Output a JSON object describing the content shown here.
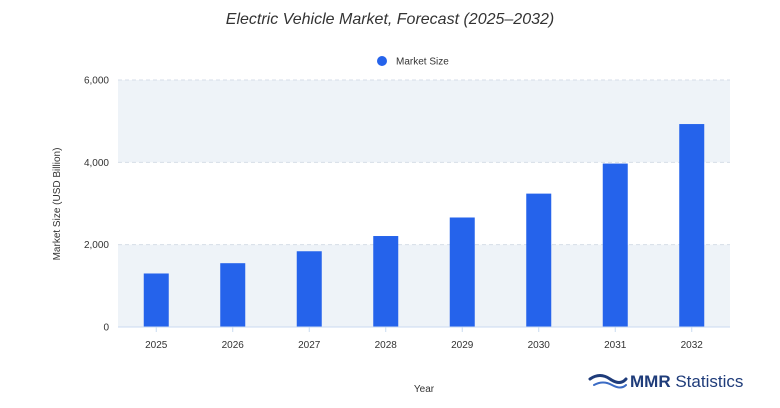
{
  "chart_data": {
    "type": "bar",
    "title": "Electric Vehicle Market, Forecast (2025–2032)",
    "xlabel": "Year",
    "ylabel": "Market Size (USD Billion)",
    "categories": [
      "2025",
      "2026",
      "2027",
      "2028",
      "2029",
      "2030",
      "2031",
      "2032"
    ],
    "series": [
      {
        "name": "Market Size",
        "values": [
          1300,
          1550,
          1840,
          2210,
          2660,
          3240,
          3970,
          4930
        ]
      }
    ],
    "ylim": [
      0,
      6000
    ],
    "yticks": [
      0,
      2000,
      4000,
      6000
    ],
    "ytick_labels": [
      "0",
      "2,000",
      "4,000",
      "6,000"
    ],
    "legend_position": "top-center",
    "grid": true,
    "colors": {
      "bar": "#2563eb",
      "band": "#eef3f8",
      "grid": "#d6dee8",
      "axis": "#c9daf0"
    }
  },
  "watermark": {
    "brand_bold": "MMR",
    "brand_rest": " Statistics",
    "icon": "mmr-wave-logo-icon"
  }
}
